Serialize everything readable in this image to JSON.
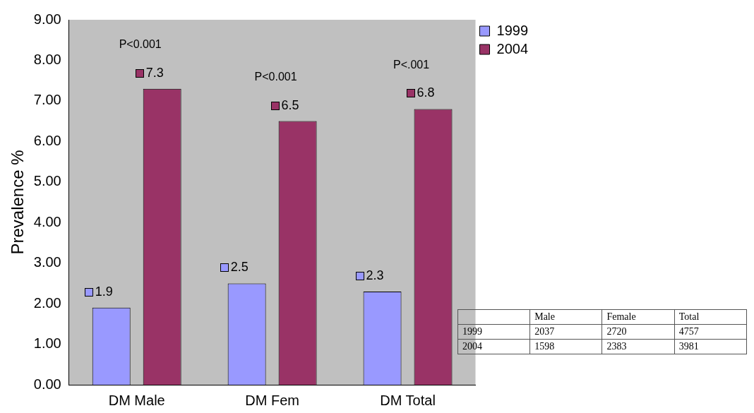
{
  "chart_data": [
    {
      "type": "bar",
      "ylabel": "Prevalence %",
      "categories": [
        "DM Male",
        "DM Fem",
        "DM Total"
      ],
      "series": [
        {
          "name": "1999",
          "color": "#9999ff",
          "values": [
            1.9,
            2.5,
            2.3
          ]
        },
        {
          "name": "2004",
          "color": "#993366",
          "values": [
            7.3,
            6.5,
            6.8
          ]
        }
      ],
      "ylim": [
        0,
        9
      ],
      "yticks": [
        {
          "value": 0,
          "label": "0.00"
        },
        {
          "value": 1,
          "label": "1.00"
        },
        {
          "value": 2,
          "label": "2.00"
        },
        {
          "value": 3,
          "label": "3.00"
        },
        {
          "value": 4,
          "label": "4.00"
        },
        {
          "value": 5,
          "label": "5.00"
        },
        {
          "value": 6,
          "label": "6.00"
        },
        {
          "value": 7,
          "label": "7.00"
        },
        {
          "value": 8,
          "label": "8.00"
        },
        {
          "value": 9,
          "label": "9.00"
        }
      ],
      "annotations": [
        "P<0.001",
        "P<0.001",
        "P<.001"
      ],
      "data_labels": true,
      "grid": false,
      "legend": "right"
    },
    {
      "type": "heatmap",
      "data_labels": true,
      "categories": [
        "Male",
        "Female",
        "Total"
      ],
      "y_categories": [
        "1999",
        "2004"
      ],
      "cells": [
        [
          2037,
          2720,
          4757
        ],
        [
          1598,
          2383,
          3981
        ]
      ]
    }
  ]
}
